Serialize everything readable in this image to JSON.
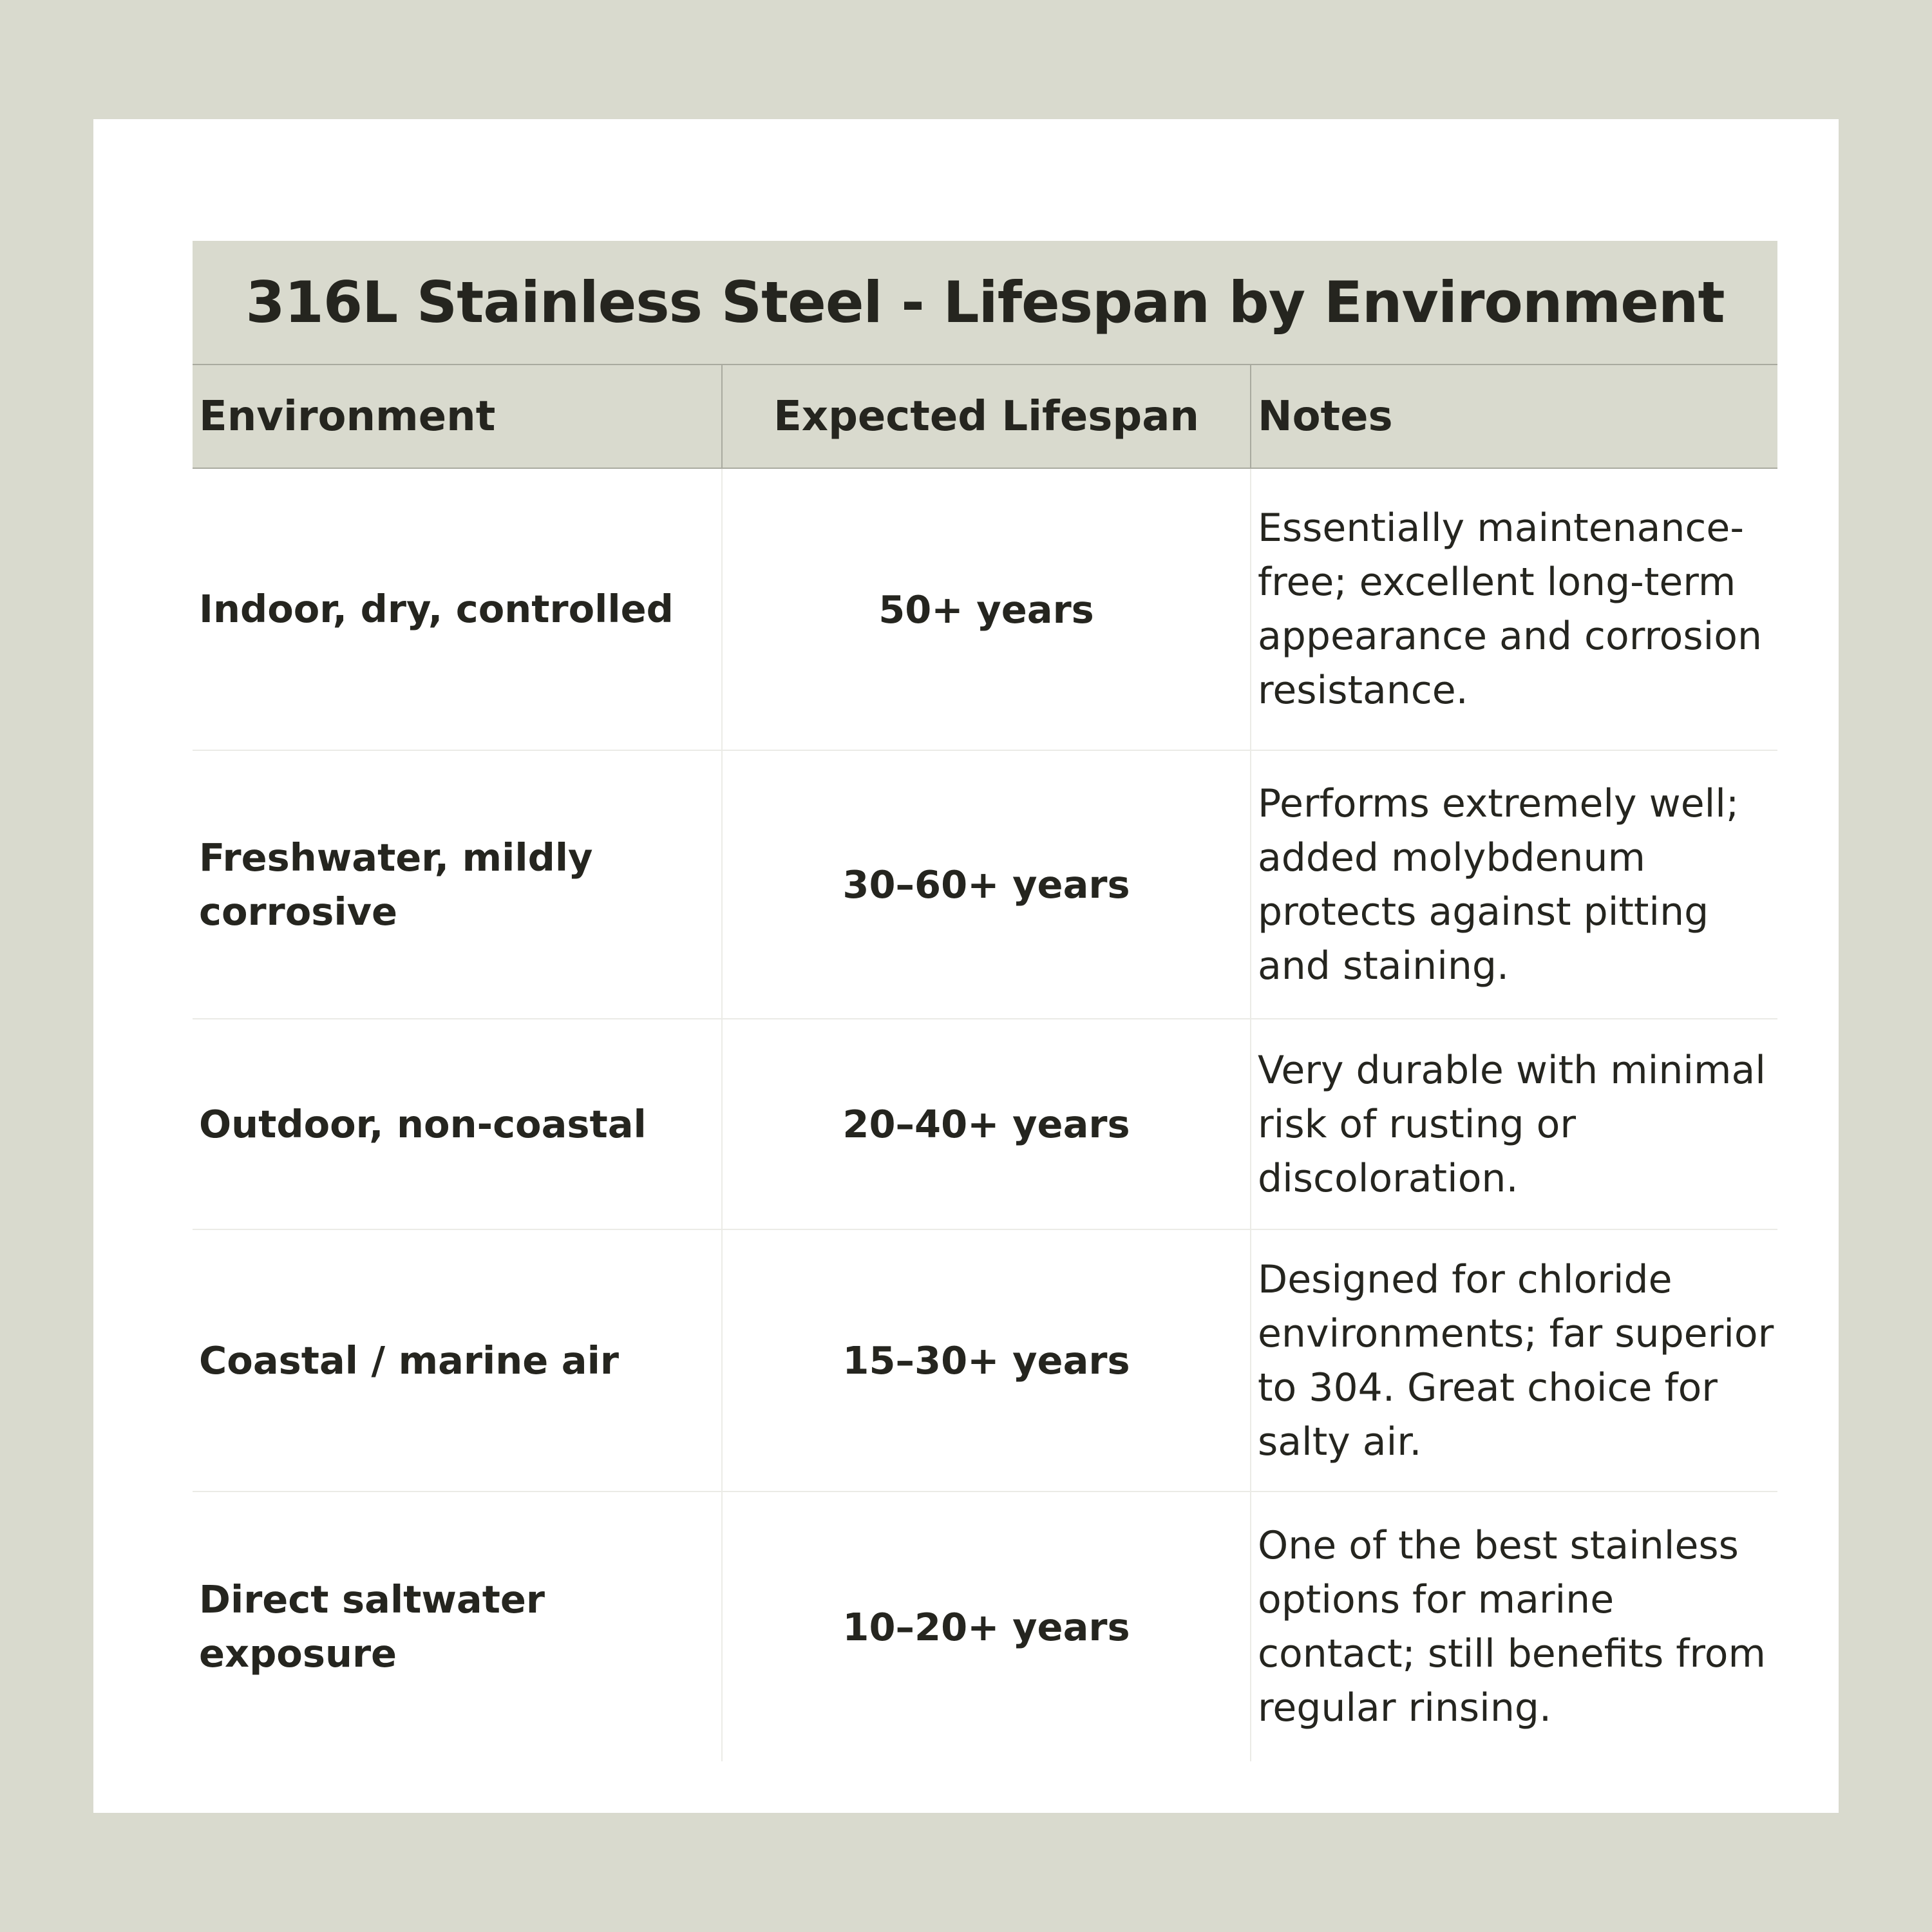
{
  "title": "316L Stainless Steel - Lifespan by Environment",
  "columns": [
    "Environment",
    "Expected Lifespan",
    "Notes"
  ],
  "rows": [
    {
      "environment": "Indoor, dry, controlled",
      "lifespan": "50+ years",
      "notes": "Essentially maintenance-free; excellent long-term appearance and corrosion resistance."
    },
    {
      "environment": "Freshwater, mildly corrosive",
      "lifespan": "30–60+ years",
      "notes": "Performs extremely well; added molybdenum protects against pitting and staining."
    },
    {
      "environment": "Outdoor, non-coastal",
      "lifespan": "20–40+ years",
      "notes": "Very durable with minimal risk of rusting or discoloration."
    },
    {
      "environment": "Coastal / marine air",
      "lifespan": "15–30+ years",
      "notes": "Designed for chloride environments; far superior to 304. Great choice for salty air."
    },
    {
      "environment": "Direct saltwater exposure",
      "lifespan": "10–20+ years",
      "notes": "One of the best stainless options for marine contact; still benefits from regular rinsing."
    }
  ],
  "colors": {
    "background": "#d9dace",
    "card": "#ffffff",
    "header_fill": "#d9dace",
    "text": "#25251f"
  }
}
